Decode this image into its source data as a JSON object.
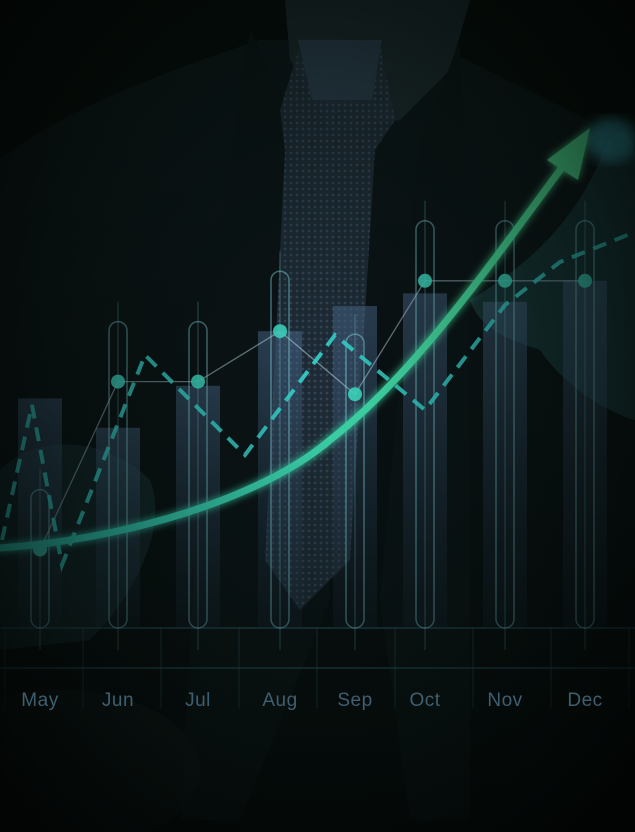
{
  "scene": {
    "description_free": true,
    "colors": {
      "background": "#040806",
      "suit": "#0e1a1f",
      "shirt": "#1d2a2f",
      "tie": "#2c3d4c",
      "accent_cyan": "#2fe0c8",
      "accent_green": "#49f0a8",
      "grid": "#2b5a6b",
      "month_label": "#3f5f70"
    },
    "icons": [
      "upward-trend-arrow"
    ]
  },
  "chart_data": {
    "type": "line",
    "categories": [
      "May",
      "Jun",
      "Jul",
      "Aug",
      "Sep",
      "Oct",
      "Nov",
      "Dec"
    ],
    "series": [
      {
        "style": "solid-arrow",
        "values": [
          1.0,
          1.2,
          1.6,
          2.2,
          3.1,
          4.6,
          6.2,
          8.4
        ]
      },
      {
        "style": "dashed",
        "values": [
          5.3,
          7.4,
          5.6,
          6.6,
          6.4,
          5.5,
          6.7,
          7.6
        ]
      },
      {
        "style": "markers",
        "values": [
          1.2,
          5.2,
          5.2,
          6.4,
          4.9,
          7.6,
          7.6,
          7.6
        ]
      }
    ],
    "bars": [
      4.8,
      4.1,
      5.1,
      6.4,
      7.0,
      7.3,
      7.1,
      7.6
    ],
    "xlabel": "",
    "ylabel": "",
    "grid": true,
    "legend": "none"
  }
}
